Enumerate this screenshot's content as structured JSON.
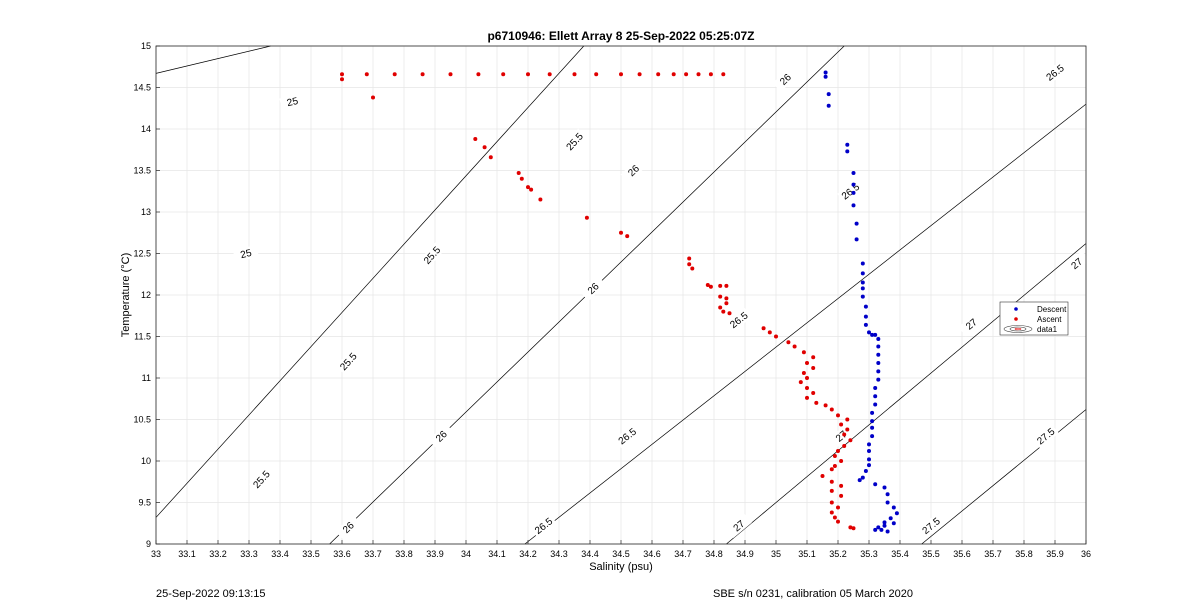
{
  "chart_data": {
    "type": "scatter",
    "title": "p6710946: Ellett Array 8 25-Sep-2022 05:25:07Z",
    "xlabel": "Salinity (psu)",
    "ylabel": "Temperature (°C)",
    "xlim": [
      33,
      36
    ],
    "ylim": [
      9,
      15
    ],
    "x_ticks": [
      "33",
      "33.1",
      "33.2",
      "33.3",
      "33.4",
      "33.5",
      "33.6",
      "33.7",
      "33.8",
      "33.9",
      "34",
      "34.1",
      "34.2",
      "34.3",
      "34.4",
      "34.5",
      "34.6",
      "34.7",
      "34.8",
      "34.9",
      "35",
      "35.1",
      "35.2",
      "35.3",
      "35.4",
      "35.5",
      "35.6",
      "35.7",
      "35.8",
      "35.9",
      "36"
    ],
    "y_ticks": [
      "9",
      "9.5",
      "10",
      "10.5",
      "11",
      "11.5",
      "12",
      "12.5",
      "13",
      "13.5",
      "14",
      "14.5",
      "15"
    ],
    "grid": true,
    "legend_position": "right",
    "legend": [
      "Descent",
      "Ascent",
      "data1"
    ],
    "series": [
      {
        "name": "Descent",
        "color": "#0000c8",
        "points": [
          [
            35.16,
            14.68
          ],
          [
            35.16,
            14.63
          ],
          [
            35.17,
            14.42
          ],
          [
            35.17,
            14.28
          ],
          [
            35.23,
            13.81
          ],
          [
            35.23,
            13.73
          ],
          [
            35.25,
            13.47
          ],
          [
            35.25,
            13.33
          ],
          [
            35.25,
            13.23
          ],
          [
            35.25,
            13.08
          ],
          [
            35.26,
            12.86
          ],
          [
            35.26,
            12.67
          ],
          [
            35.28,
            12.38
          ],
          [
            35.28,
            12.26
          ],
          [
            35.28,
            12.15
          ],
          [
            35.28,
            12.08
          ],
          [
            35.28,
            11.98
          ],
          [
            35.29,
            11.86
          ],
          [
            35.29,
            11.74
          ],
          [
            35.29,
            11.64
          ],
          [
            35.3,
            11.55
          ],
          [
            35.31,
            11.52
          ],
          [
            35.32,
            11.52
          ],
          [
            35.33,
            11.47
          ],
          [
            35.33,
            11.38
          ],
          [
            35.33,
            11.28
          ],
          [
            35.33,
            11.18
          ],
          [
            35.33,
            11.08
          ],
          [
            35.33,
            10.98
          ],
          [
            35.32,
            10.88
          ],
          [
            35.32,
            10.78
          ],
          [
            35.32,
            10.68
          ],
          [
            35.31,
            10.58
          ],
          [
            35.31,
            10.48
          ],
          [
            35.31,
            10.4
          ],
          [
            35.31,
            10.3
          ],
          [
            35.3,
            10.2
          ],
          [
            35.3,
            10.12
          ],
          [
            35.3,
            10.02
          ],
          [
            35.3,
            9.95
          ],
          [
            35.29,
            9.88
          ],
          [
            35.28,
            9.8
          ],
          [
            35.27,
            9.77
          ],
          [
            35.32,
            9.72
          ],
          [
            35.35,
            9.68
          ],
          [
            35.36,
            9.6
          ],
          [
            35.36,
            9.5
          ],
          [
            35.38,
            9.44
          ],
          [
            35.39,
            9.37
          ],
          [
            35.37,
            9.31
          ],
          [
            35.35,
            9.26
          ],
          [
            35.33,
            9.2
          ],
          [
            35.34,
            9.17
          ],
          [
            35.35,
            9.22
          ],
          [
            35.38,
            9.25
          ],
          [
            35.32,
            9.17
          ],
          [
            35.36,
            9.15
          ]
        ]
      },
      {
        "name": "Ascent",
        "color": "#e00000",
        "points": [
          [
            33.6,
            14.66
          ],
          [
            33.6,
            14.6
          ],
          [
            33.68,
            14.66
          ],
          [
            33.7,
            14.38
          ],
          [
            33.77,
            14.66
          ],
          [
            33.86,
            14.66
          ],
          [
            33.95,
            14.66
          ],
          [
            34.04,
            14.66
          ],
          [
            34.12,
            14.66
          ],
          [
            34.2,
            14.66
          ],
          [
            34.27,
            14.66
          ],
          [
            34.35,
            14.66
          ],
          [
            34.42,
            14.66
          ],
          [
            34.5,
            14.66
          ],
          [
            34.56,
            14.66
          ],
          [
            34.62,
            14.66
          ],
          [
            34.67,
            14.66
          ],
          [
            34.71,
            14.66
          ],
          [
            34.75,
            14.66
          ],
          [
            34.79,
            14.66
          ],
          [
            34.83,
            14.66
          ],
          [
            34.03,
            13.88
          ],
          [
            34.06,
            13.78
          ],
          [
            34.08,
            13.66
          ],
          [
            34.17,
            13.47
          ],
          [
            34.18,
            13.4
          ],
          [
            34.2,
            13.3
          ],
          [
            34.21,
            13.27
          ],
          [
            34.24,
            13.15
          ],
          [
            34.39,
            12.93
          ],
          [
            34.5,
            12.75
          ],
          [
            34.52,
            12.71
          ],
          [
            34.72,
            12.44
          ],
          [
            34.72,
            12.37
          ],
          [
            34.73,
            12.32
          ],
          [
            34.78,
            12.12
          ],
          [
            34.79,
            12.1
          ],
          [
            34.82,
            12.11
          ],
          [
            34.84,
            12.11
          ],
          [
            34.82,
            11.98
          ],
          [
            34.84,
            11.96
          ],
          [
            34.82,
            11.85
          ],
          [
            34.83,
            11.8
          ],
          [
            34.85,
            11.78
          ],
          [
            34.84,
            11.9
          ],
          [
            34.96,
            11.6
          ],
          [
            34.98,
            11.55
          ],
          [
            35.0,
            11.5
          ],
          [
            35.04,
            11.43
          ],
          [
            35.06,
            11.38
          ],
          [
            35.09,
            11.31
          ],
          [
            35.12,
            11.25
          ],
          [
            35.1,
            11.18
          ],
          [
            35.12,
            11.12
          ],
          [
            35.09,
            11.06
          ],
          [
            35.1,
            11.0
          ],
          [
            35.08,
            10.95
          ],
          [
            35.1,
            10.88
          ],
          [
            35.12,
            10.82
          ],
          [
            35.1,
            10.76
          ],
          [
            35.13,
            10.7
          ],
          [
            35.16,
            10.67
          ],
          [
            35.18,
            10.62
          ],
          [
            35.2,
            10.55
          ],
          [
            35.23,
            10.5
          ],
          [
            35.21,
            10.44
          ],
          [
            35.23,
            10.38
          ],
          [
            35.22,
            10.32
          ],
          [
            35.24,
            10.25
          ],
          [
            35.22,
            10.18
          ],
          [
            35.2,
            10.12
          ],
          [
            35.19,
            10.06
          ],
          [
            35.21,
            10.0
          ],
          [
            35.19,
            9.94
          ],
          [
            35.18,
            9.9
          ],
          [
            35.15,
            9.82
          ],
          [
            35.18,
            9.75
          ],
          [
            35.21,
            9.7
          ],
          [
            35.18,
            9.64
          ],
          [
            35.21,
            9.58
          ],
          [
            35.18,
            9.5
          ],
          [
            35.2,
            9.44
          ],
          [
            35.18,
            9.38
          ],
          [
            35.19,
            9.32
          ],
          [
            35.2,
            9.27
          ],
          [
            35.24,
            9.2
          ],
          [
            35.25,
            9.19
          ]
        ]
      }
    ],
    "isopycnals": [
      {
        "label": "25",
        "points": [
          [
            33.0,
            14.67
          ],
          [
            33.37,
            15.0
          ]
        ],
        "label_at": [
          [
            33.44,
            14.33
          ],
          [
            33.29,
            12.5
          ]
        ]
      },
      {
        "label": "25.5",
        "points": [
          [
            33.0,
            9.32
          ],
          [
            34.38,
            15.0
          ]
        ],
        "label_at": [
          [
            33.34,
            9.78
          ],
          [
            33.62,
            11.2
          ],
          [
            33.89,
            12.48
          ],
          [
            34.35,
            13.85
          ]
        ]
      },
      {
        "label": "26",
        "points": [
          [
            33.56,
            9.0
          ],
          [
            35.22,
            15.0
          ]
        ],
        "label_at": [
          [
            33.62,
            9.2
          ],
          [
            33.92,
            10.3
          ],
          [
            34.41,
            12.08
          ],
          [
            34.54,
            13.5
          ],
          [
            35.03,
            14.6
          ]
        ]
      },
      {
        "label": "26.5",
        "points": [
          [
            34.19,
            9.0
          ],
          [
            36.0,
            14.3
          ]
        ],
        "label_at": [
          [
            34.25,
            9.22
          ],
          [
            34.52,
            10.3
          ],
          [
            34.88,
            11.7
          ],
          [
            35.24,
            13.25
          ],
          [
            35.9,
            14.68
          ]
        ]
      },
      {
        "label": "27",
        "points": [
          [
            34.84,
            9.0
          ],
          [
            36.0,
            12.62
          ]
        ],
        "label_at": [
          [
            34.88,
            9.22
          ],
          [
            35.21,
            10.3
          ],
          [
            35.63,
            11.65
          ],
          [
            35.97,
            12.38
          ]
        ]
      },
      {
        "label": "27.5",
        "points": [
          [
            35.47,
            9.0
          ],
          [
            36.0,
            10.62
          ]
        ],
        "label_at": [
          [
            35.5,
            9.22
          ],
          [
            35.87,
            10.3
          ]
        ]
      }
    ]
  },
  "footer": {
    "left": "25-Sep-2022 09:13:15",
    "right": "SBE s/n 0231, calibration 05 March 2020"
  }
}
